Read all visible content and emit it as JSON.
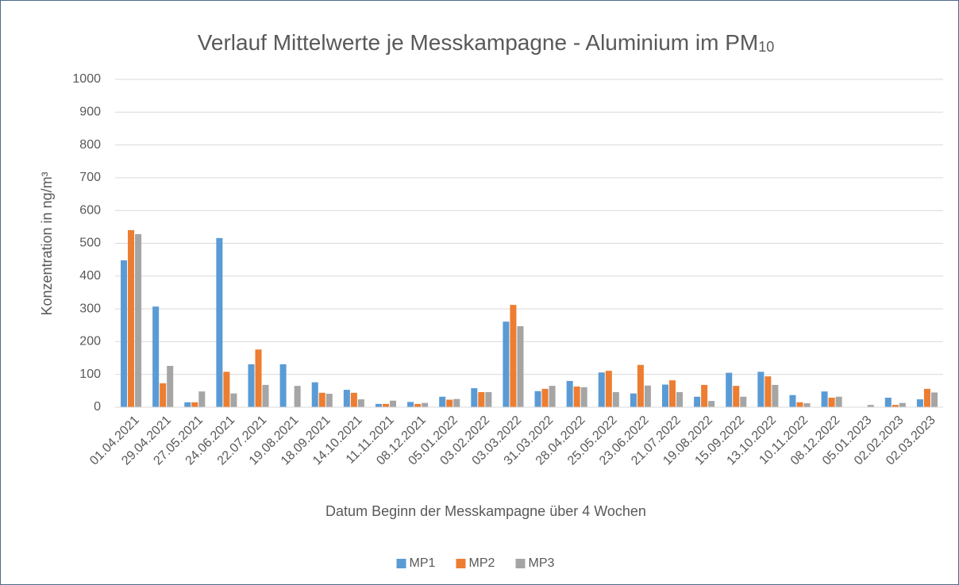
{
  "chart_data": {
    "type": "bar",
    "title": [
      "Verlauf Mittelwerte je Messkampagne - Aluminium im PM",
      "10"
    ],
    "xlabel": "Datum Beginn der Messkampagne über 4 Wochen",
    "ylabel": "Konzentration in ng/m³",
    "categories": [
      "01.04.2021",
      "29.04.2021",
      "27.05.2021",
      "24.06.2021",
      "22.07.2021",
      "19.08.2021",
      "18.09.2021",
      "14.10.2021",
      "11.11.2021",
      "08.12.2021",
      "05.01.2022",
      "03.02.2022",
      "03.03.2022",
      "31.03.2022",
      "28.04.2022",
      "25.05.2022",
      "23.06.2022",
      "21.07.2022",
      "19.08.2022",
      "15.09.2022",
      "13.10.2022",
      "10.11.2022",
      "08.12.2022",
      "05.01.2023",
      "02.02.2023",
      "02.03.2023"
    ],
    "series": [
      {
        "name": "MP1",
        "color": "#5b9bd5",
        "values": [
          448,
          307,
          15,
          516,
          131,
          131,
          76,
          53,
          10,
          16,
          32,
          58,
          261,
          49,
          80,
          106,
          42,
          69,
          32,
          105,
          108,
          37,
          48,
          null,
          29,
          24
        ]
      },
      {
        "name": "MP2",
        "color": "#ed7d31",
        "values": [
          540,
          73,
          15,
          108,
          176,
          null,
          44,
          44,
          10,
          10,
          23,
          46,
          312,
          56,
          63,
          111,
          129,
          82,
          68,
          65,
          94,
          15,
          29,
          null,
          7,
          56
        ]
      },
      {
        "name": "MP3",
        "color": "#a5a5a5",
        "values": [
          528,
          126,
          48,
          42,
          68,
          65,
          41,
          24,
          20,
          13,
          25,
          46,
          247,
          65,
          61,
          46,
          66,
          46,
          19,
          32,
          68,
          12,
          32,
          7,
          13,
          45
        ]
      }
    ],
    "ylim": [
      0,
      1000
    ],
    "yticks": [
      0,
      100,
      200,
      300,
      400,
      500,
      600,
      700,
      800,
      900,
      1000
    ],
    "grid": true,
    "legend": "bottom"
  }
}
